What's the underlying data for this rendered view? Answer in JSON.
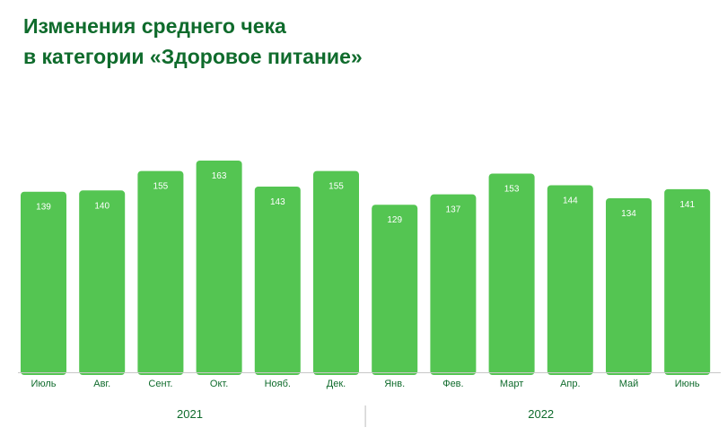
{
  "title": {
    "line1": "Изменения среднего чека",
    "line2": "в категории «Здоровое питание»"
  },
  "colors": {
    "title": "#0f6b2c",
    "bar": "#54c552",
    "bar_label": "#ffffff",
    "axis_label": "#0f6b2c"
  },
  "chart_data": {
    "type": "bar",
    "title": "Изменения среднего чека в категории «Здоровое питание»",
    "xlabel": "",
    "ylabel": "",
    "categories": [
      "Июль",
      "Авг.",
      "Сент.",
      "Окт.",
      "Нояб.",
      "Дек.",
      "Янв.",
      "Фев.",
      "Март",
      "Апр.",
      "Май",
      "Июнь"
    ],
    "values": [
      139,
      140,
      155,
      163,
      143,
      155,
      129,
      137,
      153,
      144,
      134,
      141
    ],
    "groups": [
      {
        "label": "2021",
        "start": 0,
        "end": 5
      },
      {
        "label": "2022",
        "start": 6,
        "end": 11
      }
    ],
    "ylim": [
      0,
      163
    ],
    "grid": false,
    "legend": "none",
    "data_labels": "inside-top"
  }
}
